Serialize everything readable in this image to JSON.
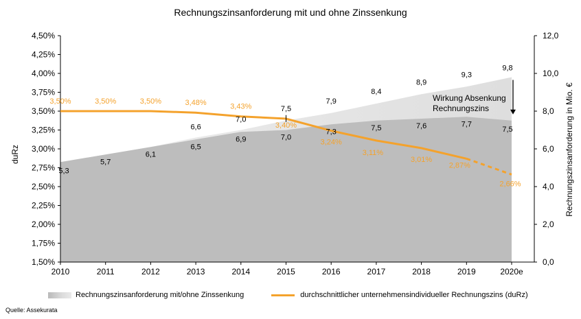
{
  "title": "Rechnungszinsanforderung  mit und ohne Zinssenkung",
  "source": "Quelle: Assekurata",
  "legend": {
    "area": "Rechnungszinsanforderung mit/ohne Zinssenkung",
    "line": "durchschnittlicher unternehmensindividueller Rechnungszins (duRz)"
  },
  "annotation": {
    "line1": "Wirkung Absenkung",
    "line2": "Rechnungszins"
  },
  "colors": {
    "line": "#f4a22c",
    "area_dark": "#bdbdbd",
    "area_light": "#e3e3e3"
  },
  "chart_data": {
    "type": "area",
    "categories": [
      "2010",
      "2011",
      "2012",
      "2013",
      "2014",
      "2015",
      "2016",
      "2017",
      "2018",
      "2019",
      "2020e"
    ],
    "y_left": {
      "label": "duRz",
      "ticks": [
        "1,50%",
        "1,75%",
        "2,00%",
        "2,25%",
        "2,50%",
        "2,75%",
        "3,00%",
        "3,25%",
        "3,50%",
        "3,75%",
        "4,00%",
        "4,25%",
        "4,50%"
      ],
      "range": [
        1.5,
        4.5
      ]
    },
    "y_right": {
      "label": "Rechnungszinsanforderung  in Mio. €",
      "ticks": [
        "0,0",
        "2,0",
        "4,0",
        "6,0",
        "8,0",
        "10,0",
        "12,0"
      ],
      "range": [
        0,
        12
      ]
    },
    "series": [
      {
        "name": "Rechnungszinsanforderung ohne Zinssenkung",
        "axis": "right",
        "values": [
          5.3,
          5.7,
          6.1,
          6.6,
          7.0,
          7.5,
          7.9,
          8.4,
          8.9,
          9.3,
          9.8
        ],
        "labels": [
          "",
          "",
          "",
          "6,6",
          "7,0",
          "7,5",
          "7,9",
          "8,4",
          "8,9",
          "9,3",
          "9,8"
        ]
      },
      {
        "name": "Rechnungszinsanforderung mit Zinssenkung",
        "axis": "right",
        "values": [
          5.3,
          5.7,
          6.1,
          6.5,
          6.9,
          7.0,
          7.3,
          7.5,
          7.6,
          7.7,
          7.5
        ],
        "labels": [
          "5,3",
          "5,7",
          "6,1",
          "6,5",
          "6,9",
          "7,0",
          "7,3",
          "7,5",
          "7,6",
          "7,7",
          "7,5"
        ]
      },
      {
        "name": "duRz",
        "axis": "left",
        "values": [
          3.5,
          3.5,
          3.5,
          3.48,
          3.43,
          3.4,
          3.24,
          3.11,
          3.01,
          2.87,
          2.66
        ],
        "labels": [
          "3,50%",
          "3,50%",
          "3,50%",
          "3,48%",
          "3,43%",
          "3,40%",
          "3,24%",
          "3,11%",
          "3,01%",
          "2,87%",
          "2,66%"
        ],
        "dashed_last_segment": true
      }
    ]
  }
}
